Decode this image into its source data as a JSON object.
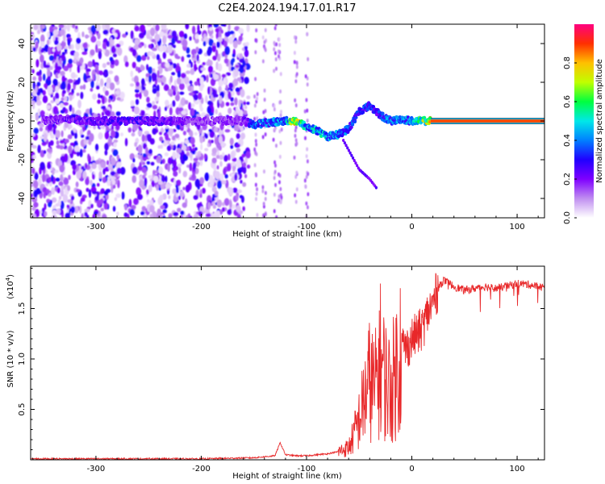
{
  "title": "C2E4.2024.194.17.01.R17",
  "chart_data": [
    {
      "type": "heatmap",
      "xlabel": "Height of straight line (km)",
      "ylabel": "Frequency (Hz)",
      "xlim": [
        -362,
        126
      ],
      "ylim": [
        -50,
        50
      ],
      "x_ticks": [
        -300,
        -200,
        -100,
        0,
        100
      ],
      "x_tick_labels": [
        "-300",
        "-200",
        "-100",
        "0",
        "100"
      ],
      "y_ticks": [
        -40,
        -20,
        0,
        20,
        40
      ],
      "y_tick_labels": [
        "-40",
        "-20",
        "0",
        "20",
        "40"
      ],
      "colorbar": {
        "label": "Normalized spectral amplitude",
        "range": [
          0.0,
          1.0
        ],
        "ticks": [
          0.0,
          0.2,
          0.4,
          0.6,
          0.8
        ],
        "tick_labels": [
          "0.0",
          "0.2",
          "0.4",
          "0.6",
          "0.8"
        ],
        "colors": [
          "#ffffff",
          "#c08ef0",
          "#7f00ff",
          "#2000ff",
          "#0080ff",
          "#00e8e8",
          "#00ff40",
          "#c0ff00",
          "#ffc000",
          "#ff3000",
          "#ff0080"
        ]
      },
      "noise_region_x": [
        -362,
        -155
      ],
      "ridge": {
        "x": [
          -350,
          -330,
          -300,
          -270,
          -240,
          -200,
          -160,
          -150,
          -140,
          -120,
          -110,
          -100,
          -90,
          -80,
          -70,
          -60,
          -50,
          -40,
          -30,
          -20,
          -10,
          0,
          20,
          60,
          100,
          126
        ],
        "y": [
          0,
          1,
          0,
          0,
          0,
          0,
          0,
          -2,
          -1,
          0,
          0,
          -3,
          -5,
          -8,
          -7,
          -4,
          5,
          8,
          3,
          0,
          1,
          0,
          0,
          0,
          0,
          0
        ],
        "amplitude": [
          0.2,
          0.25,
          0.25,
          0.3,
          0.25,
          0.2,
          0.2,
          0.4,
          0.45,
          0.45,
          0.85,
          0.5,
          0.55,
          0.5,
          0.45,
          0.4,
          0.35,
          0.4,
          0.35,
          0.45,
          0.45,
          0.5,
          0.85,
          0.85,
          0.85,
          0.85
        ]
      },
      "branch": {
        "x": [
          -65,
          -50,
          -40,
          -33
        ],
        "y": [
          -10,
          -25,
          -30,
          -35
        ]
      },
      "grid": false
    },
    {
      "type": "line",
      "xlabel": "Height of straight line (km)",
      "ylabel": "SNR (10 * v/v)",
      "y_scale_note": "(x10",
      "y_scale_exp": "4",
      "color": "#e8282a",
      "xlim": [
        -362,
        126
      ],
      "ylim": [
        0,
        1.92
      ],
      "x_ticks": [
        -300,
        -200,
        -100,
        0,
        100
      ],
      "x_tick_labels": [
        "-300",
        "-200",
        "-100",
        "0",
        "100"
      ],
      "y_ticks": [
        0.5,
        1.0,
        1.5
      ],
      "y_tick_labels": [
        "0.5",
        "1.0",
        "1.5"
      ],
      "series": [
        {
          "x": [
            -362,
            -300,
            -250,
            -200,
            -150,
            -130,
            -125,
            -120,
            -110,
            -100,
            -90,
            -80,
            -70,
            -60,
            -55,
            -50,
            -45,
            -40,
            -35,
            -30,
            -25,
            -20,
            -15,
            -10,
            -5,
            0,
            5,
            10,
            15,
            20,
            25,
            30,
            40,
            50,
            60,
            70,
            80,
            90,
            100,
            110,
            120,
            126
          ],
          "y": [
            0.01,
            0.01,
            0.01,
            0.01,
            0.02,
            0.04,
            0.17,
            0.05,
            0.04,
            0.04,
            0.05,
            0.06,
            0.08,
            0.12,
            0.25,
            0.4,
            0.6,
            0.8,
            0.7,
            1.0,
            0.8,
            0.7,
            0.9,
            1.15,
            1.1,
            1.2,
            1.25,
            1.3,
            1.45,
            1.55,
            1.7,
            1.78,
            1.72,
            1.68,
            1.7,
            1.72,
            1.7,
            1.72,
            1.75,
            1.74,
            1.72,
            1.71
          ]
        }
      ],
      "grid": false
    }
  ]
}
